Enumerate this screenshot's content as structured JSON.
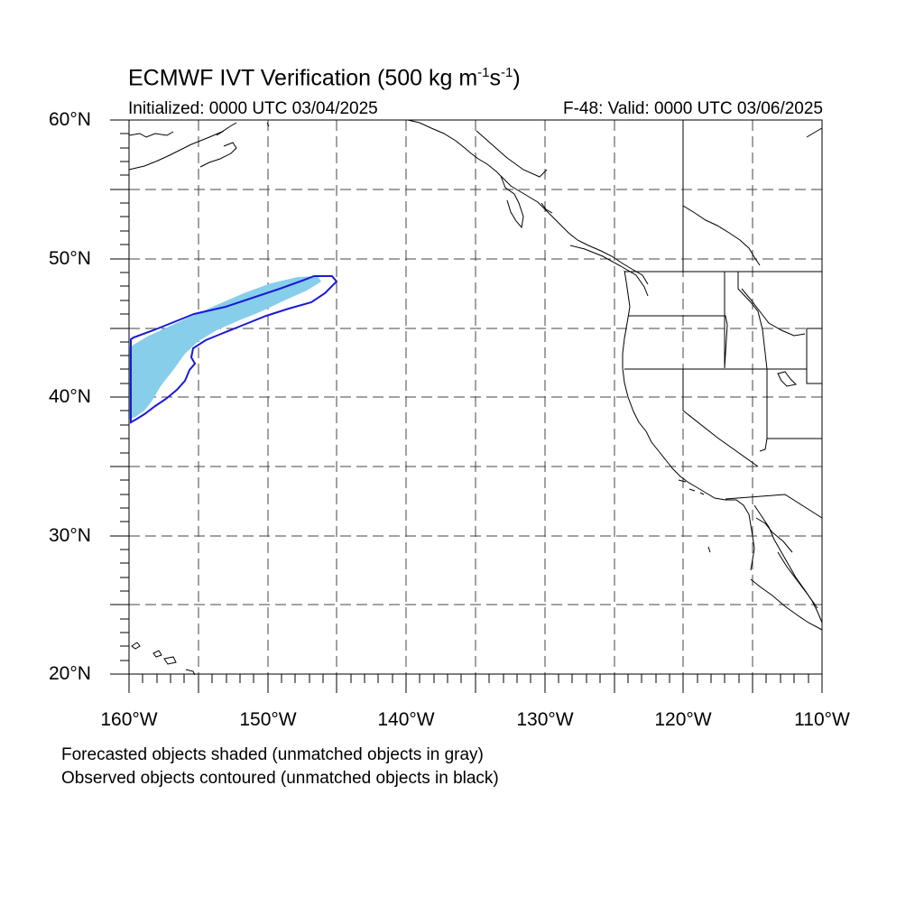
{
  "title": {
    "main": "ECMWF IVT Verification (500 kg m",
    "exp1": "-1",
    "s": "s",
    "exp2": "-1",
    "close": ")"
  },
  "subtitle": {
    "initialized": "Initialized: 0000 UTC 03/04/2025",
    "valid": "F-48: Valid: 0000 UTC 03/06/2025"
  },
  "axes": {
    "lat_labels": [
      "60°N",
      "50°N",
      "40°N",
      "30°N",
      "20°N"
    ],
    "lon_labels": [
      "160°W",
      "150°W",
      "140°W",
      "130°W",
      "120°W",
      "110°W"
    ],
    "lat_range": [
      20,
      60
    ],
    "lon_range": [
      -160,
      -110
    ],
    "grid": true,
    "grid_spacing_deg": 5
  },
  "objects": {
    "forecast_fill_color": "#87CEEB",
    "observed_contour_color": "#1a1ad6",
    "coast_color": "#000000"
  },
  "footnotes": [
    "Forecasted objects shaded (unmatched objects in gray)",
    "Observed objects contoured (unmatched objects in black)"
  ]
}
